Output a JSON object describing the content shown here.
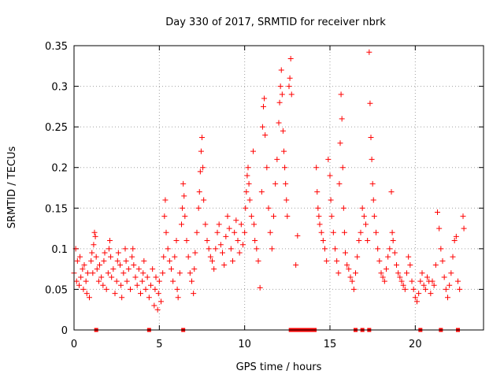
{
  "chart_data": {
    "type": "scatter",
    "title": "Day 330 of 2017, SRMTID for receiver nbrk",
    "xlabel": "GPS time / hours",
    "ylabel": "SRMTID / TECUs",
    "xlim": [
      0,
      24
    ],
    "ylim": [
      0,
      0.35
    ],
    "x_ticks": [
      0,
      5,
      10,
      15,
      20
    ],
    "x_tick_labels": [
      "0",
      "5",
      "10",
      "15",
      "20"
    ],
    "y_ticks": [
      0,
      0.05,
      0.1,
      0.15,
      0.2,
      0.25,
      0.3,
      0.35
    ],
    "y_tick_labels": [
      "0",
      "0.05",
      "0.1",
      "0.15",
      "0.2",
      "0.25",
      "0.3",
      "0.35"
    ],
    "grid": true,
    "marker": "plus",
    "marker_color": "#ff0000",
    "series": [
      {
        "name": "SRMTID",
        "points": [
          [
            0.0,
            0.07
          ],
          [
            0.1,
            0.1
          ],
          [
            0.15,
            0.06
          ],
          [
            0.2,
            0.085
          ],
          [
            0.3,
            0.055
          ],
          [
            0.35,
            0.09
          ],
          [
            0.4,
            0.065
          ],
          [
            0.5,
            0.075
          ],
          [
            0.55,
            0.05
          ],
          [
            0.6,
            0.08
          ],
          [
            0.7,
            0.06
          ],
          [
            0.75,
            0.045
          ],
          [
            0.8,
            0.07
          ],
          [
            0.9,
            0.04
          ],
          [
            1.0,
            0.085
          ],
          [
            1.05,
            0.095
          ],
          [
            1.1,
            0.07
          ],
          [
            1.15,
            0.105
          ],
          [
            1.2,
            0.12
          ],
          [
            1.25,
            0.115
          ],
          [
            1.3,
            0.09
          ],
          [
            1.35,
            0.075
          ],
          [
            1.45,
            0.06
          ],
          [
            1.5,
            0.08
          ],
          [
            1.6,
            0.065
          ],
          [
            1.7,
            0.055
          ],
          [
            1.75,
            0.085
          ],
          [
            1.8,
            0.095
          ],
          [
            1.9,
            0.05
          ],
          [
            2.0,
            0.07
          ],
          [
            2.05,
            0.1
          ],
          [
            2.1,
            0.11
          ],
          [
            2.15,
            0.09
          ],
          [
            2.2,
            0.065
          ],
          [
            2.3,
            0.075
          ],
          [
            2.4,
            0.045
          ],
          [
            2.5,
            0.06
          ],
          [
            2.55,
            0.085
          ],
          [
            2.6,
            0.095
          ],
          [
            2.7,
            0.08
          ],
          [
            2.75,
            0.055
          ],
          [
            2.8,
            0.04
          ],
          [
            2.9,
            0.07
          ],
          [
            3.0,
            0.1
          ],
          [
            3.05,
            0.085
          ],
          [
            3.1,
            0.06
          ],
          [
            3.2,
            0.075
          ],
          [
            3.3,
            0.05
          ],
          [
            3.4,
            0.09
          ],
          [
            3.45,
            0.1
          ],
          [
            3.5,
            0.08
          ],
          [
            3.6,
            0.065
          ],
          [
            3.7,
            0.055
          ],
          [
            3.8,
            0.075
          ],
          [
            3.9,
            0.045
          ],
          [
            4.0,
            0.06
          ],
          [
            4.05,
            0.07
          ],
          [
            4.1,
            0.085
          ],
          [
            4.2,
            0.05
          ],
          [
            4.3,
            0.065
          ],
          [
            4.4,
            0.04
          ],
          [
            4.5,
            0.055
          ],
          [
            4.6,
            0.075
          ],
          [
            4.7,
            0.03
          ],
          [
            4.75,
            0.05
          ],
          [
            4.8,
            0.065
          ],
          [
            4.9,
            0.025
          ],
          [
            4.95,
            0.045
          ],
          [
            5.0,
            0.06
          ],
          [
            5.1,
            0.035
          ],
          [
            5.2,
            0.07
          ],
          [
            5.25,
            0.09
          ],
          [
            5.3,
            0.14
          ],
          [
            5.35,
            0.16
          ],
          [
            5.4,
            0.12
          ],
          [
            5.5,
            0.1
          ],
          [
            5.6,
            0.085
          ],
          [
            5.7,
            0.075
          ],
          [
            5.8,
            0.06
          ],
          [
            5.9,
            0.09
          ],
          [
            6.0,
            0.11
          ],
          [
            6.05,
            0.05
          ],
          [
            6.1,
            0.04
          ],
          [
            6.2,
            0.07
          ],
          [
            6.3,
            0.13
          ],
          [
            6.35,
            0.15
          ],
          [
            6.4,
            0.18
          ],
          [
            6.45,
            0.165
          ],
          [
            6.5,
            0.14
          ],
          [
            6.6,
            0.11
          ],
          [
            6.7,
            0.09
          ],
          [
            6.8,
            0.07
          ],
          [
            6.9,
            0.06
          ],
          [
            7.0,
            0.045
          ],
          [
            7.05,
            0.075
          ],
          [
            7.1,
            0.095
          ],
          [
            7.2,
            0.12
          ],
          [
            7.3,
            0.15
          ],
          [
            7.35,
            0.17
          ],
          [
            7.4,
            0.195
          ],
          [
            7.45,
            0.22
          ],
          [
            7.5,
            0.237
          ],
          [
            7.55,
            0.2
          ],
          [
            7.6,
            0.16
          ],
          [
            7.7,
            0.13
          ],
          [
            7.8,
            0.11
          ],
          [
            7.9,
            0.1
          ],
          [
            8.0,
            0.09
          ],
          [
            8.1,
            0.085
          ],
          [
            8.2,
            0.075
          ],
          [
            8.3,
            0.1
          ],
          [
            8.4,
            0.12
          ],
          [
            8.5,
            0.13
          ],
          [
            8.6,
            0.105
          ],
          [
            8.7,
            0.095
          ],
          [
            8.8,
            0.08
          ],
          [
            8.9,
            0.115
          ],
          [
            9.0,
            0.14
          ],
          [
            9.1,
            0.125
          ],
          [
            9.2,
            0.1
          ],
          [
            9.3,
            0.085
          ],
          [
            9.4,
            0.12
          ],
          [
            9.5,
            0.135
          ],
          [
            9.6,
            0.11
          ],
          [
            9.7,
            0.095
          ],
          [
            9.8,
            0.13
          ],
          [
            9.9,
            0.105
          ],
          [
            10.0,
            0.12
          ],
          [
            10.05,
            0.15
          ],
          [
            10.1,
            0.17
          ],
          [
            10.15,
            0.19
          ],
          [
            10.2,
            0.2
          ],
          [
            10.25,
            0.18
          ],
          [
            10.3,
            0.16
          ],
          [
            10.4,
            0.14
          ],
          [
            10.5,
            0.22
          ],
          [
            10.55,
            0.13
          ],
          [
            10.6,
            0.11
          ],
          [
            10.7,
            0.1
          ],
          [
            10.8,
            0.085
          ],
          [
            10.9,
            0.052
          ],
          [
            11.0,
            0.17
          ],
          [
            11.05,
            0.25
          ],
          [
            11.1,
            0.275
          ],
          [
            11.15,
            0.285
          ],
          [
            11.2,
            0.24
          ],
          [
            11.3,
            0.2
          ],
          [
            11.4,
            0.15
          ],
          [
            11.5,
            0.12
          ],
          [
            11.6,
            0.1
          ],
          [
            11.7,
            0.14
          ],
          [
            11.8,
            0.18
          ],
          [
            11.9,
            0.21
          ],
          [
            12.0,
            0.255
          ],
          [
            12.05,
            0.28
          ],
          [
            12.1,
            0.3
          ],
          [
            12.15,
            0.32
          ],
          [
            12.2,
            0.29
          ],
          [
            12.25,
            0.245
          ],
          [
            12.3,
            0.22
          ],
          [
            12.35,
            0.2
          ],
          [
            12.4,
            0.18
          ],
          [
            12.45,
            0.16
          ],
          [
            12.5,
            0.14
          ],
          [
            12.6,
            0.3
          ],
          [
            12.65,
            0.31
          ],
          [
            12.7,
            0.334
          ],
          [
            12.75,
            0.29
          ],
          [
            13.1,
            0.116
          ],
          [
            13.0,
            0.08
          ],
          [
            14.2,
            0.2
          ],
          [
            14.25,
            0.17
          ],
          [
            14.3,
            0.15
          ],
          [
            14.35,
            0.14
          ],
          [
            14.4,
            0.13
          ],
          [
            14.5,
            0.12
          ],
          [
            14.6,
            0.11
          ],
          [
            14.7,
            0.1
          ],
          [
            14.8,
            0.085
          ],
          [
            14.9,
            0.21
          ],
          [
            15.0,
            0.19
          ],
          [
            15.05,
            0.16
          ],
          [
            15.1,
            0.14
          ],
          [
            15.2,
            0.12
          ],
          [
            15.3,
            0.1
          ],
          [
            15.4,
            0.085
          ],
          [
            15.5,
            0.07
          ],
          [
            15.55,
            0.18
          ],
          [
            15.6,
            0.23
          ],
          [
            15.65,
            0.29
          ],
          [
            15.7,
            0.26
          ],
          [
            15.75,
            0.2
          ],
          [
            15.8,
            0.15
          ],
          [
            15.85,
            0.12
          ],
          [
            15.9,
            0.095
          ],
          [
            16.0,
            0.08
          ],
          [
            16.1,
            0.075
          ],
          [
            16.2,
            0.065
          ],
          [
            16.3,
            0.06
          ],
          [
            16.4,
            0.05
          ],
          [
            16.5,
            0.07
          ],
          [
            16.6,
            0.09
          ],
          [
            16.7,
            0.11
          ],
          [
            16.8,
            0.12
          ],
          [
            16.9,
            0.15
          ],
          [
            17.0,
            0.14
          ],
          [
            17.1,
            0.13
          ],
          [
            17.2,
            0.11
          ],
          [
            17.3,
            0.342
          ],
          [
            17.35,
            0.279
          ],
          [
            17.4,
            0.237
          ],
          [
            17.45,
            0.21
          ],
          [
            17.5,
            0.18
          ],
          [
            17.55,
            0.16
          ],
          [
            17.6,
            0.14
          ],
          [
            17.7,
            0.12
          ],
          [
            17.8,
            0.1
          ],
          [
            17.9,
            0.085
          ],
          [
            18.0,
            0.07
          ],
          [
            18.1,
            0.065
          ],
          [
            18.2,
            0.06
          ],
          [
            18.3,
            0.075
          ],
          [
            18.4,
            0.09
          ],
          [
            18.5,
            0.1
          ],
          [
            18.6,
            0.17
          ],
          [
            18.65,
            0.12
          ],
          [
            18.7,
            0.11
          ],
          [
            18.8,
            0.095
          ],
          [
            18.9,
            0.08
          ],
          [
            19.0,
            0.07
          ],
          [
            19.1,
            0.065
          ],
          [
            19.2,
            0.06
          ],
          [
            19.3,
            0.055
          ],
          [
            19.4,
            0.05
          ],
          [
            19.5,
            0.07
          ],
          [
            19.6,
            0.09
          ],
          [
            19.7,
            0.08
          ],
          [
            19.8,
            0.06
          ],
          [
            19.9,
            0.05
          ],
          [
            20.0,
            0.04
          ],
          [
            20.1,
            0.035
          ],
          [
            20.2,
            0.045
          ],
          [
            20.3,
            0.06
          ],
          [
            20.4,
            0.07
          ],
          [
            20.5,
            0.055
          ],
          [
            20.6,
            0.05
          ],
          [
            20.7,
            0.065
          ],
          [
            20.8,
            0.06
          ],
          [
            20.9,
            0.045
          ],
          [
            21.0,
            0.06
          ],
          [
            21.1,
            0.055
          ],
          [
            21.2,
            0.08
          ],
          [
            21.3,
            0.145
          ],
          [
            21.4,
            0.125
          ],
          [
            21.5,
            0.1
          ],
          [
            21.6,
            0.085
          ],
          [
            21.7,
            0.065
          ],
          [
            21.8,
            0.05
          ],
          [
            21.9,
            0.04
          ],
          [
            22.0,
            0.055
          ],
          [
            22.1,
            0.07
          ],
          [
            22.2,
            0.09
          ],
          [
            22.3,
            0.11
          ],
          [
            22.4,
            0.115
          ],
          [
            22.5,
            0.06
          ],
          [
            22.6,
            0.05
          ],
          [
            22.8,
            0.14
          ],
          [
            22.85,
            0.125
          ]
        ]
      }
    ],
    "zero_markers": {
      "marker": "square",
      "x": [
        1.3,
        4.4,
        6.4,
        12.7,
        12.8,
        12.9,
        13.0,
        13.1,
        13.3,
        13.5,
        13.7,
        13.8,
        13.9,
        14.1,
        16.5,
        16.9,
        17.3,
        20.3,
        21.5,
        22.5
      ]
    }
  }
}
